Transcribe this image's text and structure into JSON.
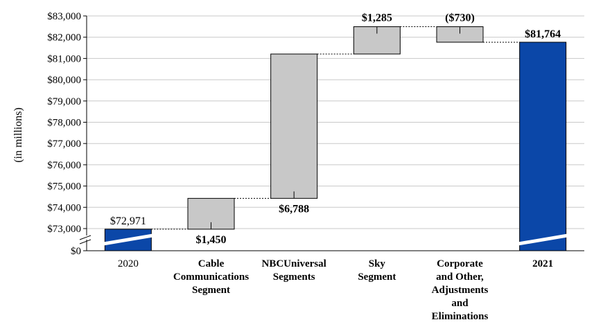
{
  "chart_data": {
    "type": "waterfall",
    "title": "",
    "xlabel": "",
    "ylabel": "(in millions)",
    "ylim": [
      73000,
      83000
    ],
    "y_ticks": [
      "$0",
      "$73,000",
      "$74,000",
      "$75,000",
      "$76,000",
      "$77,000",
      "$78,000",
      "$79,000",
      "$80,000",
      "$81,000",
      "$82,000",
      "$83,000"
    ],
    "y_tick_values": [
      0,
      73000,
      74000,
      75000,
      76000,
      77000,
      78000,
      79000,
      80000,
      81000,
      82000,
      83000
    ],
    "categories": [
      [
        "2020"
      ],
      [
        "Cable",
        "Communications",
        "Segment"
      ],
      [
        "NBCUniversal",
        "Segments"
      ],
      [
        "Sky",
        "Segment"
      ],
      [
        "Corporate",
        "and Other,",
        "Adjustments",
        "and",
        "Eliminations"
      ],
      [
        "2021"
      ]
    ],
    "bars": [
      {
        "kind": "total",
        "value": 72971,
        "label": "$72,971"
      },
      {
        "kind": "delta",
        "value": 1450,
        "label": "$1,450"
      },
      {
        "kind": "delta",
        "value": 6788,
        "label": "$6,788"
      },
      {
        "kind": "delta",
        "value": 1285,
        "label": "$1,285"
      },
      {
        "kind": "delta",
        "value": -730,
        "label": "($730)"
      },
      {
        "kind": "total",
        "value": 81764,
        "label": "$81,764"
      }
    ],
    "grid": true,
    "axis_break": true,
    "colors": {
      "total": "#0b47a8",
      "delta": "#c8c8c8",
      "stroke": "#000000",
      "grid": "#c8c8c8"
    }
  }
}
